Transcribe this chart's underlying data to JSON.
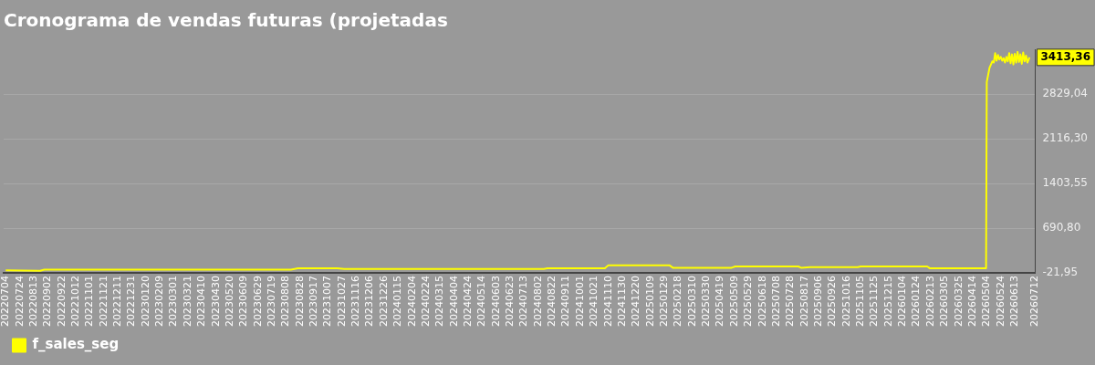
{
  "chart_data": {
    "type": "line",
    "title": "Cronograma de vendas futuras (projetadas",
    "grid": "y",
    "legend": "bottom left",
    "marker": "none",
    "line_style": "solid",
    "xlim": [
      "2022-07-01",
      "2026-07-12"
    ],
    "xticks": [
      {
        "value": "2022-07-04",
        "label": "20220704"
      },
      {
        "value": "2022-07-24",
        "label": "20220724"
      },
      {
        "value": "2022-08-13",
        "label": "20220813"
      },
      {
        "value": "2022-09-02",
        "label": "20220902"
      },
      {
        "value": "2022-09-22",
        "label": "20220922"
      },
      {
        "value": "2022-10-12",
        "label": "20221012"
      },
      {
        "value": "2022-11-01",
        "label": "20221101"
      },
      {
        "value": "2022-11-21",
        "label": "20221121"
      },
      {
        "value": "2022-12-11",
        "label": "20221211"
      },
      {
        "value": "2022-12-31",
        "label": "20221231"
      },
      {
        "value": "2023-01-20",
        "label": "20230120"
      },
      {
        "value": "2023-02-09",
        "label": "20230209"
      },
      {
        "value": "2023-03-01",
        "label": "20230301"
      },
      {
        "value": "2023-03-21",
        "label": "20230321"
      },
      {
        "value": "2023-04-10",
        "label": "20230410"
      },
      {
        "value": "2023-04-30",
        "label": "20230430"
      },
      {
        "value": "2023-05-20",
        "label": "20230520"
      },
      {
        "value": "2023-06-09",
        "label": "20230609"
      },
      {
        "value": "2023-06-29",
        "label": "20230629"
      },
      {
        "value": "2023-07-19",
        "label": "20230719"
      },
      {
        "value": "2023-08-08",
        "label": "20230808"
      },
      {
        "value": "2023-08-28",
        "label": "20230828"
      },
      {
        "value": "2023-09-17",
        "label": "20230917"
      },
      {
        "value": "2023-10-07",
        "label": "20231007"
      },
      {
        "value": "2023-10-27",
        "label": "20231027"
      },
      {
        "value": "2023-11-16",
        "label": "20231116"
      },
      {
        "value": "2023-12-06",
        "label": "20231206"
      },
      {
        "value": "2023-12-26",
        "label": "20231226"
      },
      {
        "value": "2024-01-15",
        "label": "20240115"
      },
      {
        "value": "2024-02-04",
        "label": "20240204"
      },
      {
        "value": "2024-02-24",
        "label": "20240224"
      },
      {
        "value": "2024-03-15",
        "label": "20240315"
      },
      {
        "value": "2024-04-04",
        "label": "20240404"
      },
      {
        "value": "2024-04-24",
        "label": "20240424"
      },
      {
        "value": "2024-05-14",
        "label": "20240514"
      },
      {
        "value": "2024-06-03",
        "label": "20240603"
      },
      {
        "value": "2024-06-23",
        "label": "20240623"
      },
      {
        "value": "2024-07-13",
        "label": "20240713"
      },
      {
        "value": "2024-08-02",
        "label": "20240802"
      },
      {
        "value": "2024-08-22",
        "label": "20240822"
      },
      {
        "value": "2024-09-11",
        "label": "20240911"
      },
      {
        "value": "2024-10-01",
        "label": "20241001"
      },
      {
        "value": "2024-10-21",
        "label": "20241021"
      },
      {
        "value": "2024-11-10",
        "label": "20241110"
      },
      {
        "value": "2024-11-30",
        "label": "20241130"
      },
      {
        "value": "2024-12-20",
        "label": "20241220"
      },
      {
        "value": "2025-01-09",
        "label": "20250109"
      },
      {
        "value": "2025-01-29",
        "label": "20250129"
      },
      {
        "value": "2025-02-18",
        "label": "20250218"
      },
      {
        "value": "2025-03-10",
        "label": "20250310"
      },
      {
        "value": "2025-03-30",
        "label": "20250330"
      },
      {
        "value": "2025-04-19",
        "label": "20250419"
      },
      {
        "value": "2025-05-09",
        "label": "20250509"
      },
      {
        "value": "2025-05-29",
        "label": "20250529"
      },
      {
        "value": "2025-06-18",
        "label": "20250618"
      },
      {
        "value": "2025-07-08",
        "label": "20250708"
      },
      {
        "value": "2025-07-28",
        "label": "20250728"
      },
      {
        "value": "2025-08-17",
        "label": "20250817"
      },
      {
        "value": "2025-09-06",
        "label": "20250906"
      },
      {
        "value": "2025-09-26",
        "label": "20250926"
      },
      {
        "value": "2025-10-16",
        "label": "20251016"
      },
      {
        "value": "2025-11-05",
        "label": "20251105"
      },
      {
        "value": "2025-11-25",
        "label": "20251125"
      },
      {
        "value": "2025-12-15",
        "label": "20251215"
      },
      {
        "value": "2026-01-04",
        "label": "20260104"
      },
      {
        "value": "2026-01-24",
        "label": "20260124"
      },
      {
        "value": "2026-02-13",
        "label": "20260213"
      },
      {
        "value": "2026-03-05",
        "label": "20260305"
      },
      {
        "value": "2026-03-25",
        "label": "20260325"
      },
      {
        "value": "2026-04-14",
        "label": "20260414"
      },
      {
        "value": "2026-05-04",
        "label": "20260504"
      },
      {
        "value": "2026-05-24",
        "label": "20260524"
      },
      {
        "value": "2026-06-13",
        "label": "20260613"
      },
      {
        "value": "2026-07-12",
        "label": "20260712"
      }
    ],
    "ylim": [
      -21.95,
      3541.79
    ],
    "yticks": [
      {
        "value": -21.95,
        "label": "-21,95"
      },
      {
        "value": 690.8,
        "label": "690,80"
      },
      {
        "value": 1403.55,
        "label": "1403,55"
      },
      {
        "value": 2116.3,
        "label": "2116,30"
      },
      {
        "value": 2829.04,
        "label": "2829,04"
      }
    ],
    "annotations": [
      "3413,36"
    ],
    "series": [
      {
        "name": "f_sales_seg",
        "color": "#ffff00",
        "x": [
          "2022-07-04",
          "2022-08-22",
          "2022-08-28",
          "2023-08-15",
          "2023-08-25",
          "2023-10-20",
          "2023-10-30",
          "2024-08-10",
          "2024-08-15",
          "2024-11-05",
          "2024-11-10",
          "2025-02-05",
          "2025-02-10",
          "2025-05-05",
          "2025-05-10",
          "2025-08-08",
          "2025-08-12",
          "2025-08-25",
          "2025-11-01",
          "2025-11-05",
          "2026-02-08",
          "2026-02-12",
          "2026-05-03",
          "2026-05-04",
          "2026-05-08",
          "2026-05-12",
          "2026-05-14",
          "2026-05-16",
          "2026-05-18",
          "2026-05-20",
          "2026-05-22",
          "2026-05-24",
          "2026-05-26",
          "2026-05-28",
          "2026-05-30",
          "2026-06-01",
          "2026-06-03",
          "2026-06-05",
          "2026-06-07",
          "2026-06-09",
          "2026-06-11",
          "2026-06-13",
          "2026-06-15",
          "2026-06-17",
          "2026-06-19",
          "2026-06-21",
          "2026-06-23",
          "2026-06-25",
          "2026-06-27",
          "2026-06-29",
          "2026-07-01",
          "2026-07-04"
        ],
        "values": [
          20,
          10,
          30,
          30,
          50,
          50,
          40,
          40,
          50,
          50,
          100,
          100,
          60,
          60,
          80,
          80,
          60,
          70,
          70,
          80,
          80,
          50,
          50,
          3020,
          3250,
          3350,
          3330,
          3480,
          3360,
          3450,
          3380,
          3420,
          3360,
          3400,
          3330,
          3420,
          3350,
          3480,
          3320,
          3460,
          3300,
          3470,
          3330,
          3500,
          3340,
          3460,
          3310,
          3490,
          3350,
          3440,
          3330,
          3413.36
        ]
      }
    ]
  }
}
